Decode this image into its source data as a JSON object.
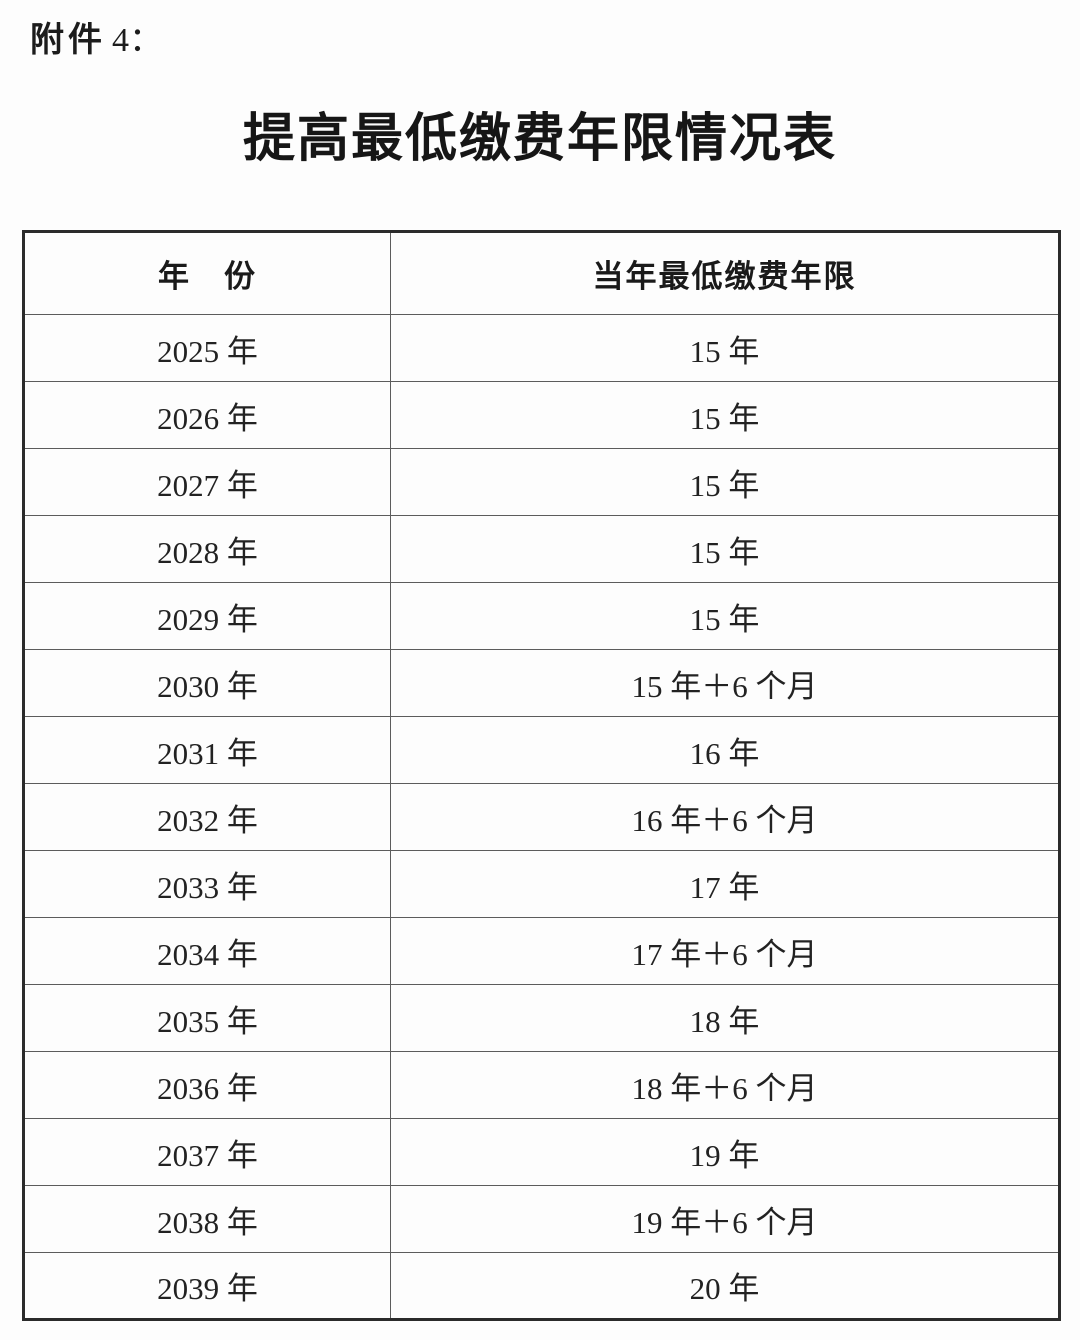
{
  "doc": {
    "attachment_prefix": "附件",
    "attachment_suffix": "4：",
    "title": "提高最低缴费年限情况表"
  },
  "table": {
    "headers": [
      "年　份",
      "当年最低缴费年限"
    ],
    "rows": [
      {
        "year": "2025 年",
        "min_years": "15 年"
      },
      {
        "year": "2026 年",
        "min_years": "15 年"
      },
      {
        "year": "2027 年",
        "min_years": "15 年"
      },
      {
        "year": "2028 年",
        "min_years": "15 年"
      },
      {
        "year": "2029 年",
        "min_years": "15 年"
      },
      {
        "year": "2030 年",
        "min_years": "15 年＋6 个月"
      },
      {
        "year": "2031 年",
        "min_years": "16 年"
      },
      {
        "year": "2032 年",
        "min_years": "16 年＋6 个月"
      },
      {
        "year": "2033 年",
        "min_years": "17 年"
      },
      {
        "year": "2034 年",
        "min_years": "17 年＋6 个月"
      },
      {
        "year": "2035 年",
        "min_years": "18 年"
      },
      {
        "year": "2036 年",
        "min_years": "18 年＋6 个月"
      },
      {
        "year": "2037 年",
        "min_years": "19 年"
      },
      {
        "year": "2038 年",
        "min_years": "19 年＋6 个月"
      },
      {
        "year": "2039 年",
        "min_years": "20 年"
      }
    ]
  },
  "colors": {
    "background": "#fdfdfd",
    "text": "#1c1c1c",
    "border_outer": "#2b2b2b",
    "border_inner": "#5c5c5c"
  }
}
